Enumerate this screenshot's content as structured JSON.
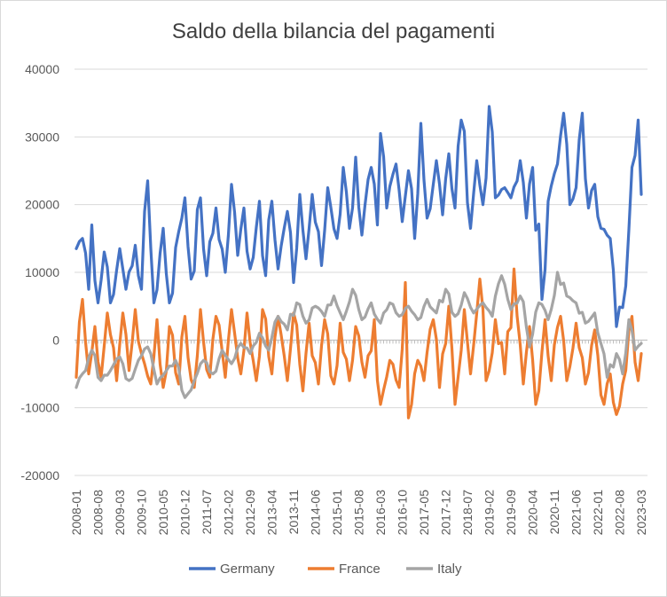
{
  "chart_data": {
    "type": "line",
    "title": "Saldo della bilancia del pagamenti",
    "xlabel": "",
    "ylabel": "",
    "ylim": [
      -20000,
      40000
    ],
    "yticks": [
      -20000,
      -10000,
      0,
      10000,
      20000,
      30000,
      40000
    ],
    "ytick_labels": [
      "-20000",
      "-10000",
      "0",
      "10000",
      "20000",
      "30000",
      "40000"
    ],
    "x_start": "2008-01",
    "x_end": "2023-03",
    "xtick_labels": [
      "2008-01",
      "2008-08",
      "2009-03",
      "2009-10",
      "2010-05",
      "2010-12",
      "2011-07",
      "2012-02",
      "2012-09",
      "2013-04",
      "2013-11",
      "2014-06",
      "2015-01",
      "2015-08",
      "2016-03",
      "2016-10",
      "2017-05",
      "2017-12",
      "2018-07",
      "2019-02",
      "2019-09",
      "2020-04",
      "2020-11",
      "2021-06",
      "2022-01",
      "2022-08",
      "2023-03"
    ],
    "grid": true,
    "legend_position": "bottom",
    "series": [
      {
        "name": "Germany",
        "color": "#4472C4",
        "anchors": [
          [
            "2008-01",
            13500
          ],
          [
            "2008-03",
            15000
          ],
          [
            "2008-05",
            7500
          ],
          [
            "2008-06",
            17000
          ],
          [
            "2008-08",
            5500
          ],
          [
            "2008-10",
            13000
          ],
          [
            "2008-12",
            5500
          ],
          [
            "2009-03",
            13500
          ],
          [
            "2009-05",
            7500
          ],
          [
            "2009-08",
            14000
          ],
          [
            "2009-10",
            7500
          ],
          [
            "2009-12",
            23500
          ],
          [
            "2010-02",
            5500
          ],
          [
            "2010-05",
            16500
          ],
          [
            "2010-07",
            5500
          ],
          [
            "2010-10",
            16000
          ],
          [
            "2010-12",
            21000
          ],
          [
            "2011-02",
            9000
          ],
          [
            "2011-05",
            21000
          ],
          [
            "2011-07",
            9500
          ],
          [
            "2011-10",
            19500
          ],
          [
            "2012-01",
            10000
          ],
          [
            "2012-03",
            23000
          ],
          [
            "2012-05",
            12500
          ],
          [
            "2012-07",
            19500
          ],
          [
            "2012-09",
            10500
          ],
          [
            "2012-12",
            20500
          ],
          [
            "2013-02",
            9500
          ],
          [
            "2013-04",
            20500
          ],
          [
            "2013-06",
            10500
          ],
          [
            "2013-09",
            19000
          ],
          [
            "2013-11",
            8500
          ],
          [
            "2014-01",
            21500
          ],
          [
            "2014-03",
            12000
          ],
          [
            "2014-05",
            21500
          ],
          [
            "2014-08",
            11000
          ],
          [
            "2014-10",
            22500
          ],
          [
            "2015-01",
            15000
          ],
          [
            "2015-03",
            25500
          ],
          [
            "2015-05",
            16500
          ],
          [
            "2015-07",
            27000
          ],
          [
            "2015-09",
            15500
          ],
          [
            "2015-12",
            25500
          ],
          [
            "2016-02",
            17000
          ],
          [
            "2016-03",
            30500
          ],
          [
            "2016-05",
            19500
          ],
          [
            "2016-08",
            26000
          ],
          [
            "2016-10",
            17500
          ],
          [
            "2016-12",
            25000
          ],
          [
            "2017-02",
            15000
          ],
          [
            "2017-04",
            32000
          ],
          [
            "2017-06",
            18000
          ],
          [
            "2017-09",
            26500
          ],
          [
            "2017-11",
            18500
          ],
          [
            "2018-01",
            27500
          ],
          [
            "2018-03",
            19500
          ],
          [
            "2018-05",
            32500
          ],
          [
            "2018-08",
            16500
          ],
          [
            "2018-10",
            26500
          ],
          [
            "2018-12",
            20000
          ],
          [
            "2019-02",
            34500
          ],
          [
            "2019-04",
            21000
          ],
          [
            "2019-07",
            22500
          ],
          [
            "2019-09",
            21000
          ],
          [
            "2019-12",
            26500
          ],
          [
            "2020-02",
            18000
          ],
          [
            "2020-04",
            25500
          ],
          [
            "2020-07",
            6000
          ],
          [
            "2020-09",
            20500
          ],
          [
            "2020-12",
            26000
          ],
          [
            "2021-02",
            33500
          ],
          [
            "2021-04",
            20000
          ],
          [
            "2021-06",
            22500
          ],
          [
            "2021-08",
            33500
          ],
          [
            "2021-10",
            19500
          ],
          [
            "2021-12",
            23000
          ],
          [
            "2022-02",
            16500
          ],
          [
            "2022-05",
            15000
          ],
          [
            "2022-07",
            2000
          ],
          [
            "2022-10",
            8000
          ],
          [
            "2022-12",
            25500
          ],
          [
            "2023-02",
            32500
          ],
          [
            "2023-03",
            21500
          ]
        ]
      },
      {
        "name": "France",
        "color": "#ED7D31",
        "anchors": [
          [
            "2008-01",
            -5500
          ],
          [
            "2008-03",
            6000
          ],
          [
            "2008-05",
            -5000
          ],
          [
            "2008-07",
            2000
          ],
          [
            "2008-09",
            -5500
          ],
          [
            "2008-11",
            4000
          ],
          [
            "2009-02",
            -6000
          ],
          [
            "2009-04",
            4000
          ],
          [
            "2009-06",
            -4500
          ],
          [
            "2009-08",
            4500
          ],
          [
            "2009-10",
            -2000
          ],
          [
            "2010-01",
            -6500
          ],
          [
            "2010-03",
            3000
          ],
          [
            "2010-05",
            -7000
          ],
          [
            "2010-07",
            2000
          ],
          [
            "2010-10",
            -6500
          ],
          [
            "2010-12",
            3500
          ],
          [
            "2011-03",
            -7000
          ],
          [
            "2011-05",
            4500
          ],
          [
            "2011-08",
            -5500
          ],
          [
            "2011-10",
            3500
          ],
          [
            "2012-01",
            -5500
          ],
          [
            "2012-03",
            4500
          ],
          [
            "2012-06",
            -5000
          ],
          [
            "2012-08",
            4000
          ],
          [
            "2012-11",
            -6000
          ],
          [
            "2013-01",
            4500
          ],
          [
            "2013-04",
            -5000
          ],
          [
            "2013-06",
            3500
          ],
          [
            "2013-09",
            -6000
          ],
          [
            "2013-11",
            4000
          ],
          [
            "2014-02",
            -7500
          ],
          [
            "2014-04",
            2500
          ],
          [
            "2014-07",
            -6500
          ],
          [
            "2014-09",
            3000
          ],
          [
            "2014-12",
            -6500
          ],
          [
            "2015-02",
            2500
          ],
          [
            "2015-05",
            -6000
          ],
          [
            "2015-07",
            2000
          ],
          [
            "2015-10",
            -5500
          ],
          [
            "2016-01",
            3000
          ],
          [
            "2016-03",
            -9500
          ],
          [
            "2016-06",
            -3000
          ],
          [
            "2016-09",
            -7000
          ],
          [
            "2016-11",
            8500
          ],
          [
            "2016-12",
            -11500
          ],
          [
            "2017-03",
            -3000
          ],
          [
            "2017-05",
            -6000
          ],
          [
            "2017-08",
            3000
          ],
          [
            "2017-10",
            -7000
          ],
          [
            "2018-01",
            5000
          ],
          [
            "2018-03",
            -9500
          ],
          [
            "2018-06",
            4500
          ],
          [
            "2018-08",
            -5000
          ],
          [
            "2018-11",
            9000
          ],
          [
            "2019-01",
            -6000
          ],
          [
            "2019-04",
            3000
          ],
          [
            "2019-07",
            -5000
          ],
          [
            "2019-10",
            10500
          ],
          [
            "2020-01",
            -6500
          ],
          [
            "2020-03",
            2000
          ],
          [
            "2020-05",
            -9500
          ],
          [
            "2020-08",
            3000
          ],
          [
            "2020-10",
            -6000
          ],
          [
            "2021-01",
            3500
          ],
          [
            "2021-03",
            -6000
          ],
          [
            "2021-06",
            2500
          ],
          [
            "2021-09",
            -6500
          ],
          [
            "2021-12",
            1500
          ],
          [
            "2022-03",
            -9500
          ],
          [
            "2022-05",
            -5000
          ],
          [
            "2022-07",
            -11000
          ],
          [
            "2022-10",
            -4500
          ],
          [
            "2022-12",
            3500
          ],
          [
            "2023-02",
            -6000
          ],
          [
            "2023-03",
            -2000
          ]
        ]
      },
      {
        "name": "Italy",
        "color": "#A5A5A5",
        "anchors": [
          [
            "2008-01",
            -7000
          ],
          [
            "2008-04",
            -4500
          ],
          [
            "2008-06",
            -1500
          ],
          [
            "2008-09",
            -6000
          ],
          [
            "2008-12",
            -4500
          ],
          [
            "2009-03",
            -2500
          ],
          [
            "2009-06",
            -6000
          ],
          [
            "2009-09",
            -3000
          ],
          [
            "2009-12",
            -1000
          ],
          [
            "2010-03",
            -6500
          ],
          [
            "2010-06",
            -4500
          ],
          [
            "2010-09",
            -3000
          ],
          [
            "2010-12",
            -8500
          ],
          [
            "2011-03",
            -6000
          ],
          [
            "2011-06",
            -3000
          ],
          [
            "2011-09",
            -5000
          ],
          [
            "2011-12",
            -1500
          ],
          [
            "2012-03",
            -3500
          ],
          [
            "2012-06",
            -500
          ],
          [
            "2012-09",
            -2000
          ],
          [
            "2012-12",
            1000
          ],
          [
            "2013-03",
            -1500
          ],
          [
            "2013-06",
            3500
          ],
          [
            "2013-09",
            1500
          ],
          [
            "2013-12",
            5500
          ],
          [
            "2014-03",
            2500
          ],
          [
            "2014-06",
            5000
          ],
          [
            "2014-09",
            3500
          ],
          [
            "2014-12",
            6500
          ],
          [
            "2015-03",
            3000
          ],
          [
            "2015-06",
            7500
          ],
          [
            "2015-09",
            3000
          ],
          [
            "2015-12",
            5500
          ],
          [
            "2016-03",
            2500
          ],
          [
            "2016-06",
            5500
          ],
          [
            "2016-09",
            3500
          ],
          [
            "2016-12",
            5000
          ],
          [
            "2017-03",
            3000
          ],
          [
            "2017-06",
            6000
          ],
          [
            "2017-09",
            4000
          ],
          [
            "2017-12",
            7500
          ],
          [
            "2018-03",
            3500
          ],
          [
            "2018-06",
            7000
          ],
          [
            "2018-09",
            4000
          ],
          [
            "2018-12",
            5500
          ],
          [
            "2019-03",
            3500
          ],
          [
            "2019-06",
            9500
          ],
          [
            "2019-09",
            4500
          ],
          [
            "2019-12",
            6500
          ],
          [
            "2020-03",
            -1000
          ],
          [
            "2020-06",
            5500
          ],
          [
            "2020-09",
            3000
          ],
          [
            "2020-12",
            10000
          ],
          [
            "2021-03",
            6500
          ],
          [
            "2021-06",
            5500
          ],
          [
            "2021-09",
            2500
          ],
          [
            "2021-12",
            4000
          ],
          [
            "2022-02",
            -500
          ],
          [
            "2022-04",
            -5500
          ],
          [
            "2022-07",
            -2000
          ],
          [
            "2022-09",
            -5000
          ],
          [
            "2022-11",
            3000
          ],
          [
            "2023-01",
            -1500
          ],
          [
            "2023-03",
            -500
          ]
        ]
      }
    ]
  }
}
